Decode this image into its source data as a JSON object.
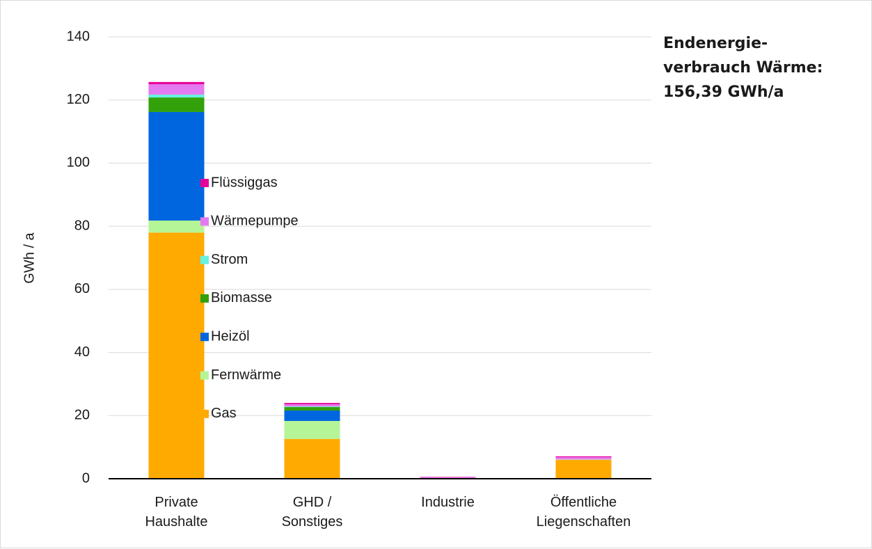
{
  "chart_data": {
    "type": "stacked-bar",
    "annotation": "Endenergie-\nverbrauch Wärme:\n156,39 GWh/a",
    "y_label": "GWh / a",
    "categories": [
      "Private\nHaushalte",
      "GHD /\nSonstiges",
      "Industrie",
      "Öffentliche\nLiegenschaften"
    ],
    "series": [
      {
        "name": "Gas",
        "color": "#ffaa00",
        "values": [
          78.0,
          12.6,
          0.2,
          6.0
        ]
      },
      {
        "name": "Fernwärme",
        "color": "#b5f598",
        "values": [
          3.8,
          5.7,
          0.0,
          0.1
        ]
      },
      {
        "name": "Heizöl",
        "color": "#0066e0",
        "values": [
          34.4,
          3.3,
          0.0,
          0.0
        ]
      },
      {
        "name": "Biomasse",
        "color": "#33a10a",
        "values": [
          4.6,
          1.1,
          0.0,
          0.0
        ]
      },
      {
        "name": "Strom",
        "color": "#66f2e0",
        "values": [
          0.9,
          0.2,
          0.0,
          0.0
        ]
      },
      {
        "name": "Wärmepumpe",
        "color": "#e47aef",
        "values": [
          3.3,
          0.7,
          0.3,
          0.7
        ]
      },
      {
        "name": "Flüssiggas",
        "color": "#e6009a",
        "values": [
          0.7,
          0.4,
          0.1,
          0.3
        ]
      }
    ],
    "ylim": [
      0,
      140
    ],
    "yticks": [
      0,
      20,
      40,
      60,
      80,
      100,
      120,
      140
    ],
    "grid": true,
    "legend": "right"
  }
}
